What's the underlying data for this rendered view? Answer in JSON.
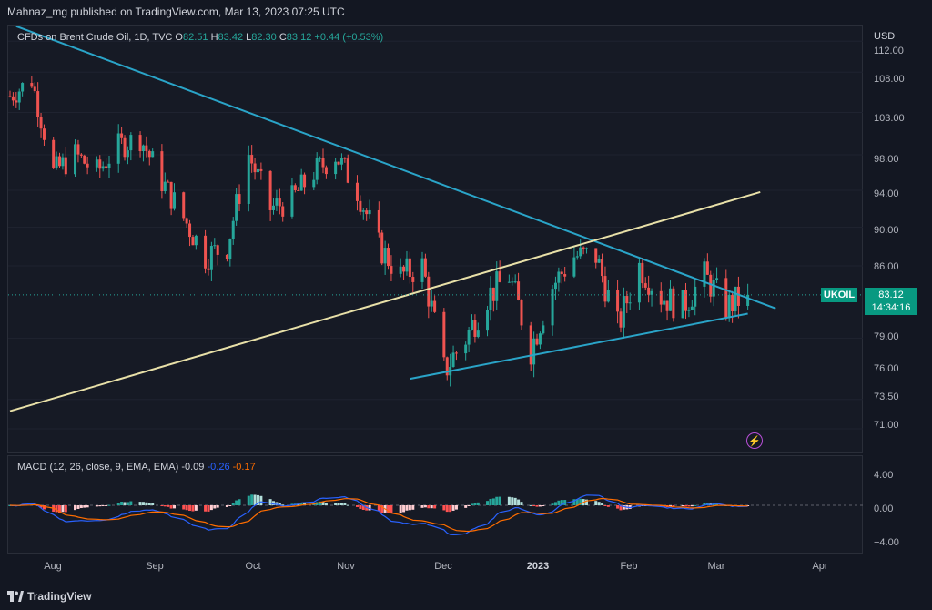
{
  "header": {
    "publish_text": "Mahnaz_mg published on TradingView.com, Mar 13, 2023 07:25 UTC"
  },
  "legend": {
    "symbol_text": "CFDs on Brent Crude Oil, 1D, TVC",
    "o_label": "O",
    "o_value": "82.51",
    "h_label": "H",
    "h_value": "83.42",
    "l_label": "L",
    "l_value": "82.30",
    "c_label": "C",
    "c_value": "83.12",
    "change": "+0.44 (+0.53%)"
  },
  "macd_legend": {
    "label": "MACD (12, 26, close, 9, EMA, EMA)",
    "hist": "-0.09",
    "macd": "-0.26",
    "signal": "-0.17"
  },
  "price_axis": {
    "currency": "USD",
    "ticks": [
      "112.00",
      "108.00",
      "103.00",
      "98.00",
      "94.00",
      "90.00",
      "86.00",
      "79.00",
      "76.00",
      "73.50",
      "71.00"
    ]
  },
  "macd_axis": {
    "ticks": [
      "4.00",
      "0.00",
      "−4.00"
    ]
  },
  "last_price": {
    "ticker": "UKOIL",
    "price": "83.12",
    "countdown": "14:34:16"
  },
  "time_axis": {
    "labels": [
      "Aug",
      "Sep",
      "Oct",
      "Nov",
      "Dec",
      "2023",
      "Feb",
      "Mar",
      "Apr"
    ]
  },
  "footer": {
    "brand": "TradingView"
  },
  "colors": {
    "up": "#26a69a",
    "down": "#ef5350",
    "trendline_blue": "#2aa4c8",
    "trendline_yellow": "#e8e0a8",
    "macd": "#2962ff",
    "signal": "#ff6d00"
  },
  "chart_data": {
    "type": "candlestick",
    "x_range": [
      "2022-07-18",
      "2023-04-10"
    ],
    "y_scale": "log",
    "ylim": [
      69.5,
      113
    ],
    "last_close": 83.12,
    "closes_approx": [
      [
        "2022-07-18",
        105
      ],
      [
        "2022-07-25",
        107
      ],
      [
        "2022-08-01",
        96
      ],
      [
        "2022-08-08",
        98
      ],
      [
        "2022-08-15",
        96
      ],
      [
        "2022-08-22",
        99
      ],
      [
        "2022-08-29",
        100
      ],
      [
        "2022-09-05",
        95
      ],
      [
        "2022-09-12",
        91
      ],
      [
        "2022-09-19",
        87
      ],
      [
        "2022-09-26",
        88
      ],
      [
        "2022-10-03",
        98
      ],
      [
        "2022-10-10",
        92
      ],
      [
        "2022-10-17",
        93
      ],
      [
        "2022-10-24",
        96
      ],
      [
        "2022-10-31",
        98
      ],
      [
        "2022-11-07",
        94
      ],
      [
        "2022-11-14",
        88
      ],
      [
        "2022-11-21",
        85
      ],
      [
        "2022-11-28",
        86
      ],
      [
        "2022-12-05",
        76
      ],
      [
        "2022-12-12",
        79
      ],
      [
        "2022-12-19",
        83
      ],
      [
        "2022-12-26",
        85
      ],
      [
        "2023-01-02",
        78
      ],
      [
        "2023-01-09",
        84
      ],
      [
        "2023-01-16",
        87
      ],
      [
        "2023-01-23",
        87
      ],
      [
        "2023-01-30",
        80
      ],
      [
        "2023-02-06",
        86
      ],
      [
        "2023-02-13",
        83
      ],
      [
        "2023-02-20",
        82
      ],
      [
        "2023-02-27",
        85
      ],
      [
        "2023-03-06",
        82
      ],
      [
        "2023-03-13",
        83.12
      ]
    ],
    "trendlines": [
      {
        "name": "descending-resistance",
        "from": [
          "2022-07-20",
          114
        ],
        "to": [
          "2023-03-22",
          81.8
        ]
      },
      {
        "name": "ascending-support",
        "from": [
          "2022-11-24",
          75.3
        ],
        "to": [
          "2023-03-13",
          81.3
        ]
      },
      {
        "name": "long-ascending",
        "from": [
          "2022-07-18",
          72.5
        ],
        "to": [
          "2023-03-17",
          93.8
        ]
      }
    ],
    "macd": {
      "ylim": [
        -5,
        5
      ],
      "last_macd": -0.26,
      "last_signal": -0.17,
      "last_hist": -0.09
    }
  }
}
